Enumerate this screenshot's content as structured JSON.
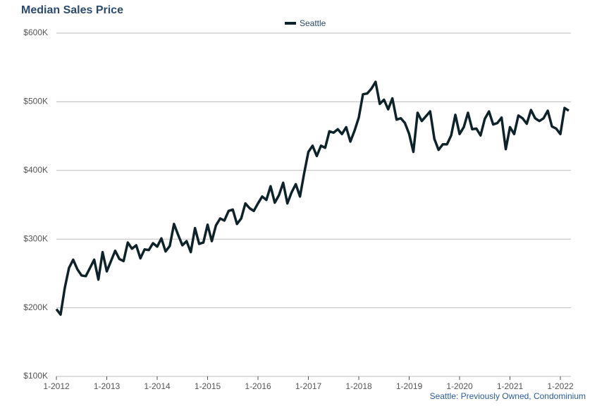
{
  "chart_data": {
    "type": "line",
    "title": "Median Sales Price",
    "note": "Seattle: Previously Owned, Condominium",
    "x": [
      "1-2012",
      "2-2012",
      "3-2012",
      "4-2012",
      "5-2012",
      "6-2012",
      "7-2012",
      "8-2012",
      "9-2012",
      "10-2012",
      "11-2012",
      "12-2012",
      "1-2013",
      "2-2013",
      "3-2013",
      "4-2013",
      "5-2013",
      "6-2013",
      "7-2013",
      "8-2013",
      "9-2013",
      "10-2013",
      "11-2013",
      "12-2013",
      "1-2014",
      "2-2014",
      "3-2014",
      "4-2014",
      "5-2014",
      "6-2014",
      "7-2014",
      "8-2014",
      "9-2014",
      "10-2014",
      "11-2014",
      "12-2014",
      "1-2015",
      "2-2015",
      "3-2015",
      "4-2015",
      "5-2015",
      "6-2015",
      "7-2015",
      "8-2015",
      "9-2015",
      "10-2015",
      "11-2015",
      "12-2015",
      "1-2016",
      "2-2016",
      "3-2016",
      "4-2016",
      "5-2016",
      "6-2016",
      "7-2016",
      "8-2016",
      "9-2016",
      "10-2016",
      "11-2016",
      "12-2016",
      "1-2017",
      "2-2017",
      "3-2017",
      "4-2017",
      "5-2017",
      "6-2017",
      "7-2017",
      "8-2017",
      "9-2017",
      "10-2017",
      "11-2017",
      "12-2017",
      "1-2018",
      "2-2018",
      "3-2018",
      "4-2018",
      "5-2018",
      "6-2018",
      "7-2018",
      "8-2018",
      "9-2018",
      "10-2018",
      "11-2018",
      "12-2018",
      "1-2019",
      "2-2019",
      "3-2019",
      "4-2019",
      "5-2019",
      "6-2019",
      "7-2019",
      "8-2019",
      "9-2019",
      "10-2019",
      "11-2019",
      "12-2019",
      "1-2020",
      "2-2020",
      "3-2020",
      "4-2020",
      "5-2020",
      "6-2020",
      "7-2020",
      "8-2020",
      "9-2020",
      "10-2020",
      "11-2020",
      "12-2020",
      "1-2021",
      "2-2021",
      "3-2021",
      "4-2021",
      "5-2021",
      "6-2021",
      "7-2021",
      "8-2021",
      "9-2021",
      "10-2021",
      "11-2021",
      "12-2021",
      "1-2022",
      "2-2022",
      "3-2022"
    ],
    "series": [
      {
        "name": "Seattle",
        "color": "#0d2329",
        "values": [
          198000,
          190000,
          229000,
          258000,
          270000,
          256000,
          247000,
          246000,
          258000,
          270000,
          241000,
          281000,
          253000,
          268000,
          283000,
          271000,
          268000,
          295000,
          286000,
          291000,
          272000,
          285000,
          284000,
          294000,
          289000,
          301000,
          282000,
          290000,
          322000,
          306000,
          291000,
          297000,
          281000,
          316000,
          293000,
          295000,
          321000,
          297000,
          320000,
          330000,
          327000,
          341000,
          343000,
          322000,
          330000,
          352000,
          345000,
          341000,
          352000,
          362000,
          357000,
          377000,
          353000,
          364000,
          382000,
          352000,
          368000,
          380000,
          362000,
          396000,
          427000,
          436000,
          421000,
          436000,
          433000,
          457000,
          455000,
          460000,
          453000,
          463000,
          442000,
          458000,
          477000,
          511000,
          512000,
          519000,
          529000,
          497000,
          503000,
          489000,
          505000,
          474000,
          476000,
          469000,
          453000,
          427000,
          484000,
          472000,
          479000,
          486000,
          446000,
          430000,
          438000,
          438000,
          451000,
          481000,
          453000,
          463000,
          484000,
          460000,
          461000,
          451000,
          475000,
          486000,
          467000,
          469000,
          477000,
          431000,
          463000,
          453000,
          480000,
          476000,
          468000,
          488000,
          476000,
          472000,
          476000,
          487000,
          464000,
          461000,
          453000,
          491000,
          487000
        ]
      }
    ],
    "xticks": [
      "1-2012",
      "1-2013",
      "1-2014",
      "1-2015",
      "1-2016",
      "1-2017",
      "1-2018",
      "1-2019",
      "1-2020",
      "1-2021",
      "1-2022"
    ],
    "ylim": [
      100000,
      600000
    ],
    "yticks": [
      {
        "value": 100000,
        "label": "$100K"
      },
      {
        "value": 200000,
        "label": "$200K"
      },
      {
        "value": 300000,
        "label": "$300K"
      },
      {
        "value": 400000,
        "label": "$400K"
      },
      {
        "value": 500000,
        "label": "$500K"
      },
      {
        "value": 600000,
        "label": "$600K"
      }
    ],
    "grid": true,
    "legend": "top"
  }
}
